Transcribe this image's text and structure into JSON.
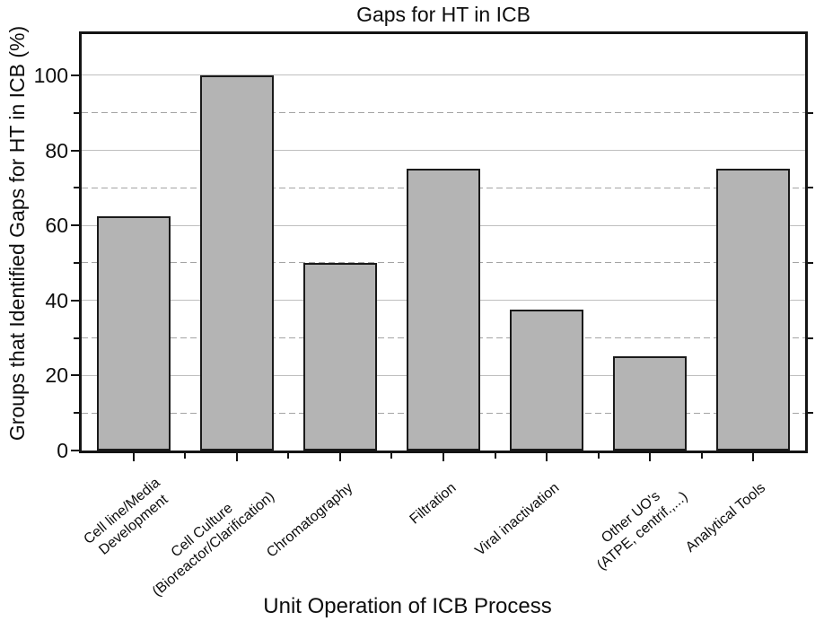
{
  "figure": {
    "title": "Gaps for HT in ICB",
    "x_axis_title": "Unit Operation of ICB Process",
    "y_axis_title": "Groups that Identified Gaps for HT in ICB (%)"
  },
  "chart_data": {
    "type": "bar",
    "title": "Gaps for HT in ICB",
    "xlabel": "Unit Operation of ICB Process",
    "ylabel": "Groups that Identified Gaps for HT in ICB (%)",
    "categories": [
      [
        "Cell line/Media",
        "Development"
      ],
      [
        "Cell Culture",
        "(Bioreactor/Clarification)"
      ],
      [
        "Chromatography"
      ],
      [
        "Filtration"
      ],
      [
        "Viral inactivation"
      ],
      [
        "Other UO's",
        "(ATPE, centrif.,...)"
      ],
      [
        "Analytical Tools"
      ]
    ],
    "values": [
      62.5,
      100,
      50,
      75,
      37.5,
      25,
      75
    ],
    "ylim": [
      0,
      111
    ],
    "yticks_major": [
      0,
      20,
      40,
      60,
      80,
      100
    ],
    "yticks_minor": [
      10,
      30,
      50,
      70,
      90
    ],
    "grid": {
      "major_style": "solid",
      "minor_style": "dashed",
      "major_color": "#bfbfbf",
      "minor_color": "#a4a4a4"
    },
    "bar_fill": "#b4b4b4",
    "bar_edge": "#1a1a1a",
    "axis_color": "#141414",
    "legend_position": "none"
  }
}
